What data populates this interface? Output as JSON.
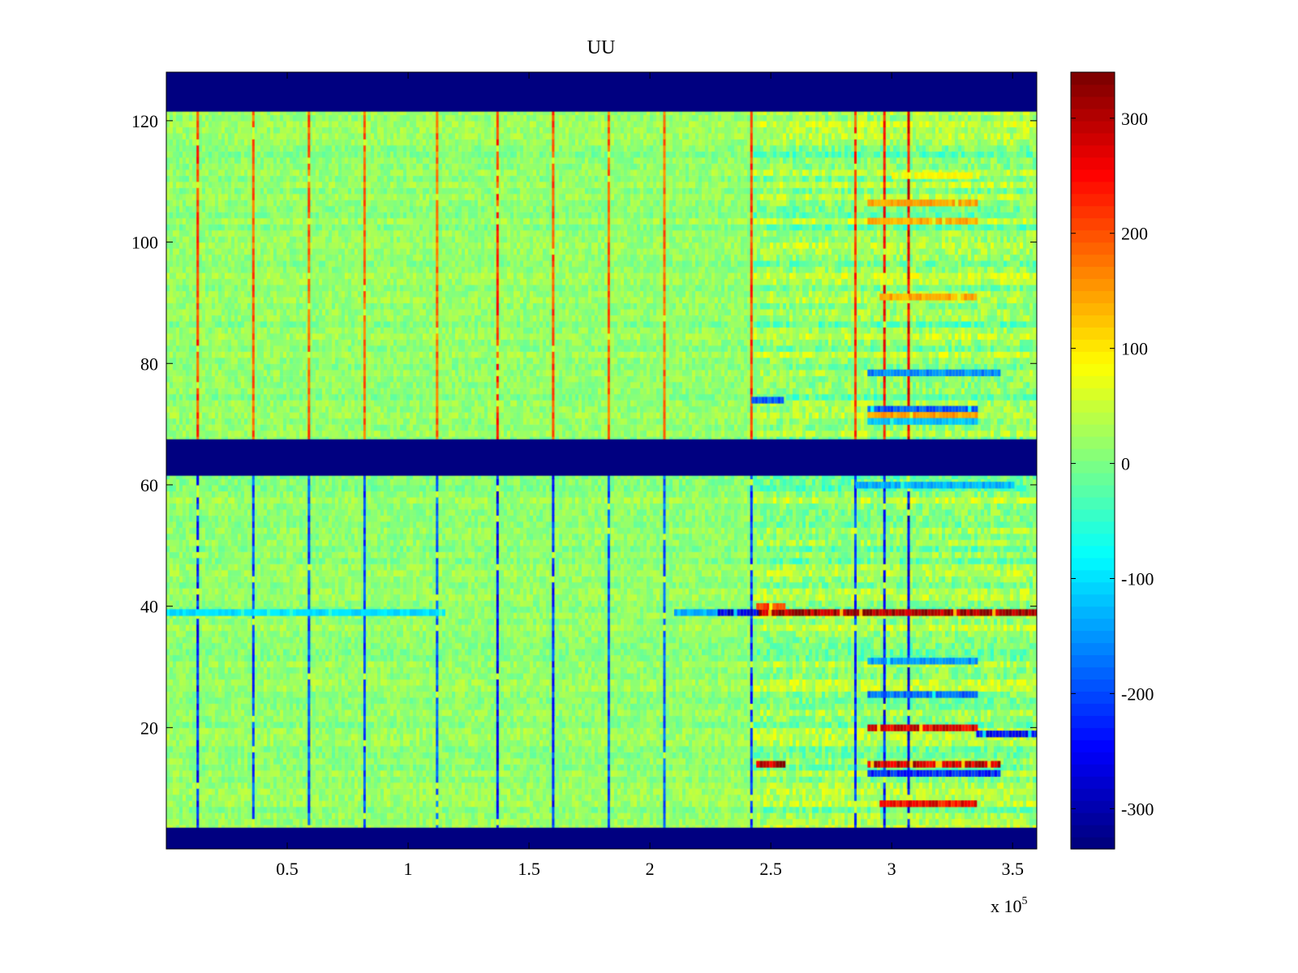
{
  "chart_data": {
    "type": "heatmap",
    "title": "UU",
    "xlabel": "",
    "ylabel": "",
    "x_multiplier_label": {
      "base": "x 10",
      "exponent": "5"
    },
    "xlim": [
      0,
      3.6
    ],
    "ylim": [
      0,
      128
    ],
    "x_ticks": [
      0.5,
      1,
      1.5,
      2,
      2.5,
      3,
      3.5
    ],
    "x_tick_labels": [
      "0.5",
      "1",
      "1.5",
      "2",
      "2.5",
      "3",
      "3.5"
    ],
    "y_ticks": [
      20,
      40,
      60,
      80,
      100,
      120
    ],
    "y_tick_labels": [
      "20",
      "40",
      "60",
      "80",
      "100",
      "120"
    ],
    "colorbar": {
      "colormap": "jet",
      "clim": [
        -335,
        340
      ],
      "ticks": [
        300,
        200,
        100,
        0,
        -100,
        -200,
        -300
      ],
      "tick_labels": [
        "300",
        "200",
        "100",
        "0",
        "-100",
        "-200",
        "-300"
      ]
    },
    "masked_row_bands": [
      {
        "y_from": 0,
        "y_to": 3.5,
        "value": -335
      },
      {
        "y_from": 61.5,
        "y_to": 67.5,
        "value": -335
      },
      {
        "y_from": 121.5,
        "y_to": 128,
        "value": -335
      }
    ],
    "spike_columns": [
      {
        "x": 0.13,
        "upper_value": 230,
        "lower_value": -250
      },
      {
        "x": 0.36,
        "upper_value": 210,
        "lower_value": -220
      },
      {
        "x": 0.59,
        "upper_value": 210,
        "lower_value": -220
      },
      {
        "x": 0.82,
        "upper_value": 200,
        "lower_value": -220
      },
      {
        "x": 1.12,
        "upper_value": 200,
        "lower_value": -200
      },
      {
        "x": 1.37,
        "upper_value": 240,
        "lower_value": -260
      },
      {
        "x": 1.6,
        "upper_value": 220,
        "lower_value": -240
      },
      {
        "x": 1.83,
        "upper_value": 200,
        "lower_value": -210
      },
      {
        "x": 2.06,
        "upper_value": 200,
        "lower_value": -200
      },
      {
        "x": 2.42,
        "upper_value": 230,
        "lower_value": -230
      },
      {
        "x": 2.85,
        "upper_value": 230,
        "lower_value": -230
      },
      {
        "x": 2.97,
        "upper_value": 260,
        "lower_value": -260
      },
      {
        "x": 3.07,
        "upper_value": 280,
        "lower_value": -280
      }
    ],
    "row_features": [
      {
        "y": 39,
        "x_from": 0.0,
        "x_to": 1.15,
        "value": -110
      },
      {
        "y": 39,
        "x_from": 2.1,
        "x_to": 2.28,
        "value": -140
      },
      {
        "y": 39,
        "x_from": 2.28,
        "x_to": 2.45,
        "value": -280
      },
      {
        "y": 39,
        "x_from": 2.45,
        "x_to": 3.6,
        "value": 335
      },
      {
        "y": 40,
        "x_from": 2.44,
        "x_to": 2.56,
        "value": 230
      },
      {
        "y": 106.5,
        "x_from": 2.9,
        "x_to": 3.35,
        "value": 150
      },
      {
        "y": 103.5,
        "x_from": 2.9,
        "x_to": 3.35,
        "value": 150
      },
      {
        "y": 111,
        "x_from": 3.0,
        "x_to": 3.35,
        "value": 90
      },
      {
        "y": 91,
        "x_from": 2.95,
        "x_to": 3.35,
        "value": 150
      },
      {
        "y": 78.5,
        "x_from": 2.9,
        "x_to": 3.45,
        "value": -170
      },
      {
        "y": 74,
        "x_from": 2.42,
        "x_to": 2.55,
        "value": -200
      },
      {
        "y": 72.5,
        "x_from": 2.9,
        "x_to": 3.35,
        "value": -200
      },
      {
        "y": 71.5,
        "x_from": 2.9,
        "x_to": 3.35,
        "value": 160
      },
      {
        "y": 70.5,
        "x_from": 2.9,
        "x_to": 3.35,
        "value": -130
      },
      {
        "y": 60,
        "x_from": 2.85,
        "x_to": 3.5,
        "value": -140
      },
      {
        "y": 31,
        "x_from": 2.9,
        "x_to": 3.35,
        "value": -160
      },
      {
        "y": 25.5,
        "x_from": 2.9,
        "x_to": 3.35,
        "value": -190
      },
      {
        "y": 20,
        "x_from": 2.9,
        "x_to": 3.35,
        "value": 280
      },
      {
        "y": 19,
        "x_from": 3.35,
        "x_to": 3.6,
        "value": -260
      },
      {
        "y": 14,
        "x_from": 2.9,
        "x_to": 3.45,
        "value": 300
      },
      {
        "y": 14,
        "x_from": 2.44,
        "x_to": 2.56,
        "value": 310
      },
      {
        "y": 12.5,
        "x_from": 2.9,
        "x_to": 3.45,
        "value": -250
      },
      {
        "y": 7.5,
        "x_from": 2.95,
        "x_to": 3.35,
        "value": 270
      }
    ]
  }
}
